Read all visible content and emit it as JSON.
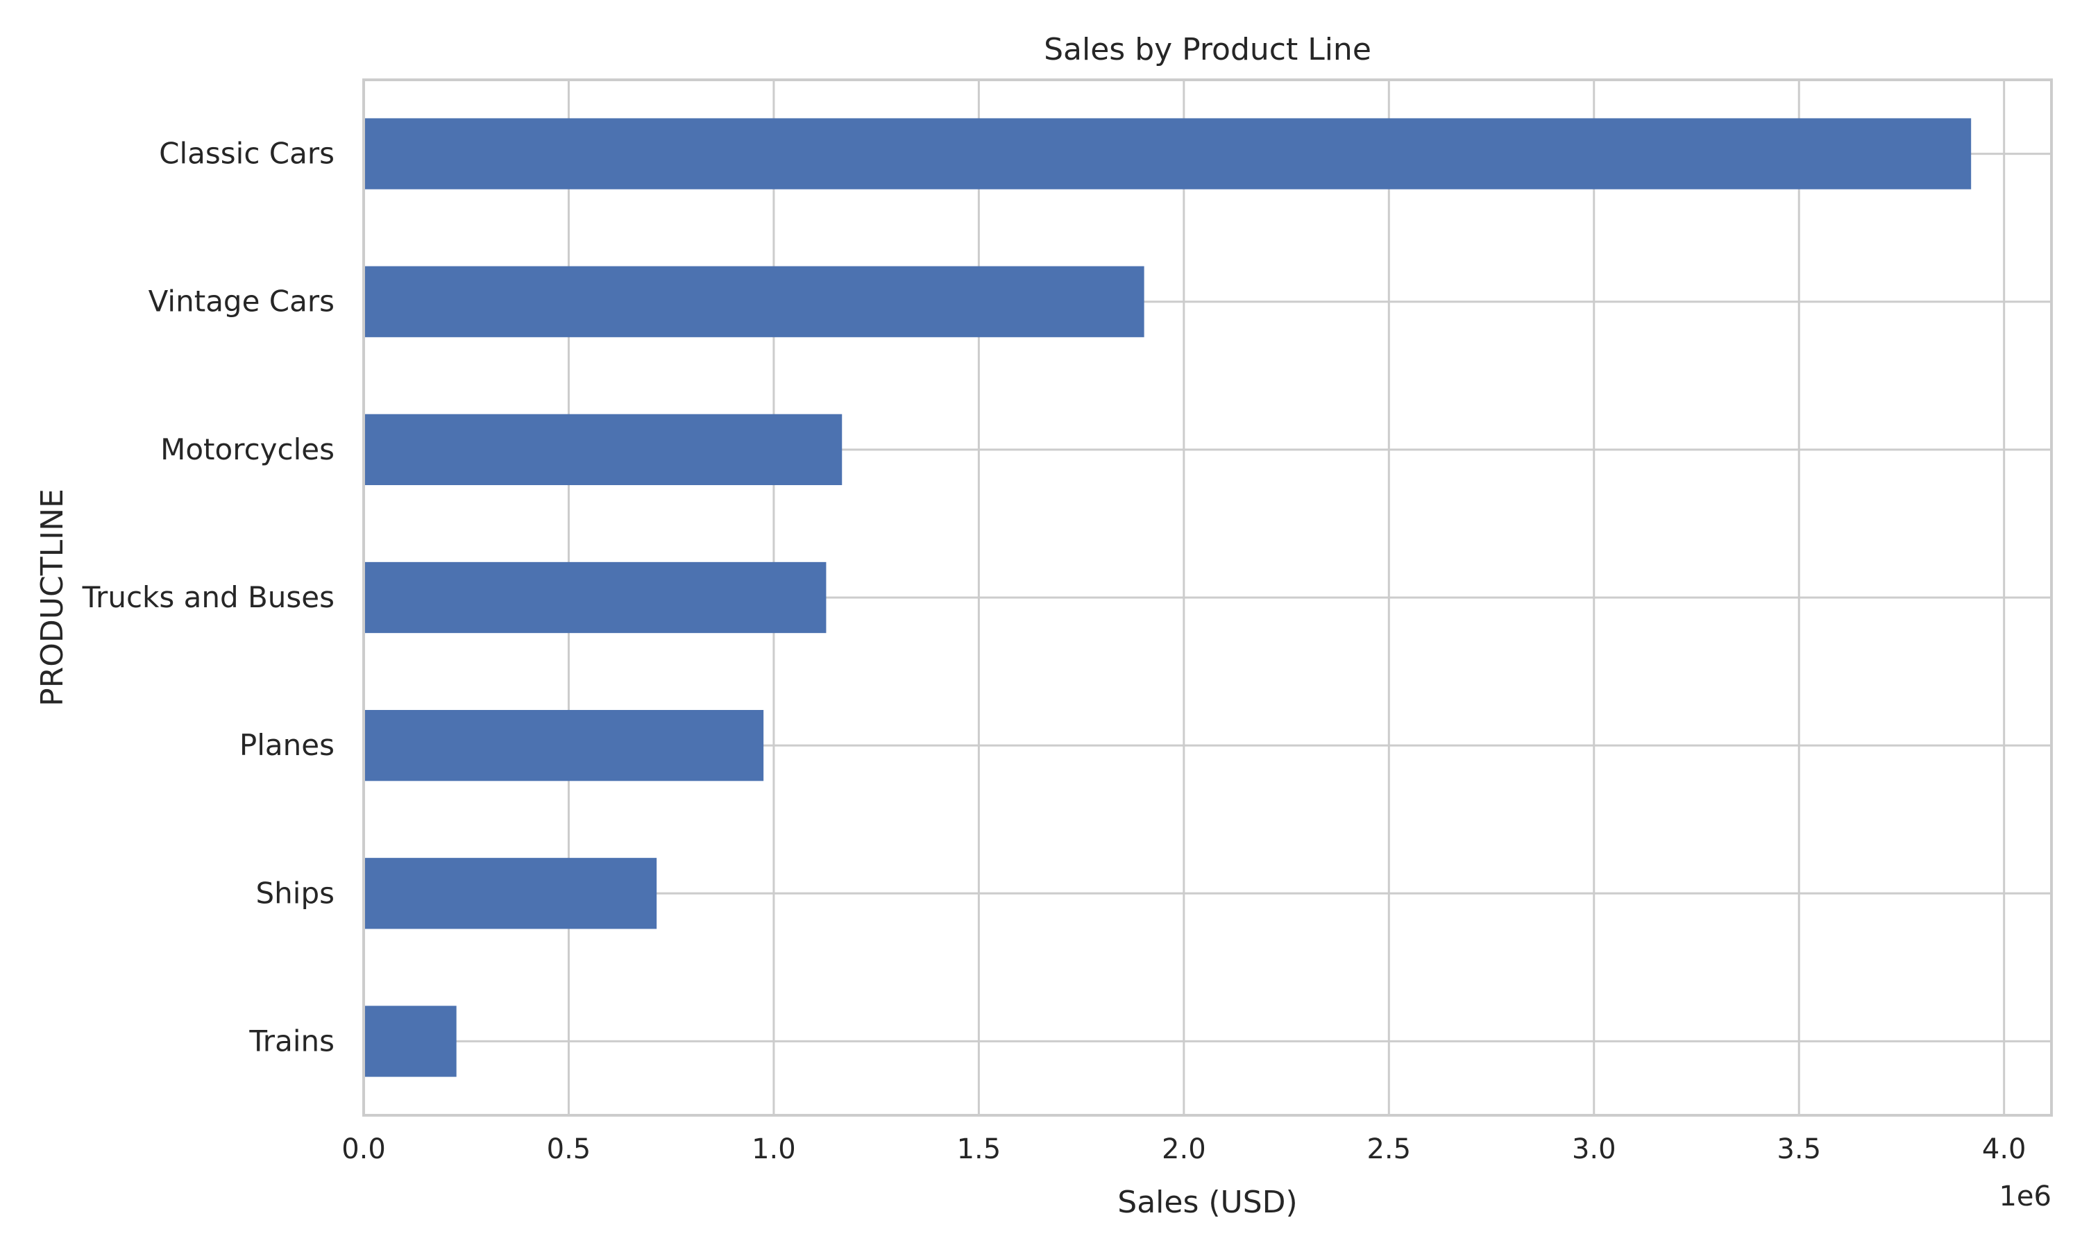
{
  "chart_data": {
    "type": "bar",
    "orientation": "horizontal",
    "title": "Sales by Product Line",
    "xlabel": "Sales (USD)",
    "ylabel": "PRODUCTLINE",
    "x_scale_label": "1e6",
    "categories": [
      "Classic Cars",
      "Vintage Cars",
      "Motorcycles",
      "Trucks and Buses",
      "Planes",
      "Ships",
      "Trains"
    ],
    "values": [
      3919616,
      1903151,
      1166388,
      1127790,
      975004,
      714437,
      226243
    ],
    "xlim": [
      0,
      4115597
    ],
    "x_ticks": [
      0,
      500000,
      1000000,
      1500000,
      2000000,
      2500000,
      3000000,
      3500000,
      4000000
    ],
    "x_tick_labels": [
      "0.0",
      "0.5",
      "1.0",
      "1.5",
      "2.0",
      "2.5",
      "3.0",
      "3.5",
      "4.0"
    ],
    "grid": true,
    "legend": "none",
    "colors": {
      "bar": "#4c72b0",
      "grid": "#cccccc",
      "spine": "#cccccc",
      "text": "#262626"
    }
  }
}
